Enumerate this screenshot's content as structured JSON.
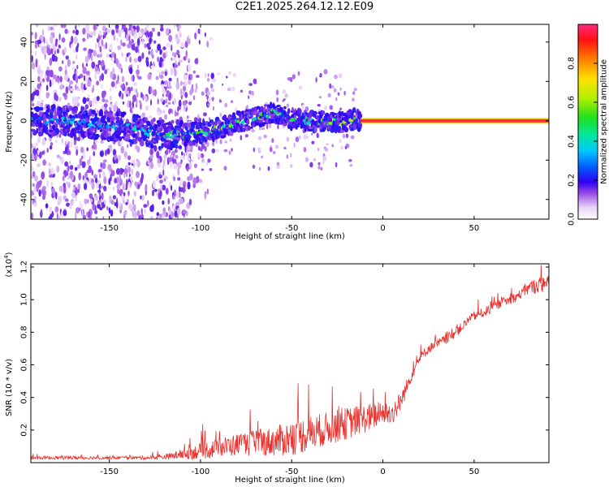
{
  "title": "C2E1.2025.264.12.12.E09",
  "chart_data": [
    {
      "type": "heatmap",
      "name": "spectrogram",
      "xlabel": "Height of straight line (km)",
      "ylabel": "Frequency (Hz)",
      "xlim": [
        -193,
        91
      ],
      "ylim": [
        -50,
        49
      ],
      "xticks": [
        -150,
        -100,
        -50,
        0,
        50
      ],
      "xtick_labels": [
        "-150",
        "-100",
        "-50",
        "0",
        "50"
      ],
      "yticks": [
        -40,
        -20,
        0,
        20,
        40
      ],
      "ytick_labels": [
        "-40",
        "-20",
        "0",
        "20",
        "40"
      ],
      "ridge": {
        "x": [
          -193,
          -175,
          -160,
          -140,
          -125,
          -110,
          -100,
          -90,
          -80,
          -70,
          -60,
          -50,
          -40,
          -30,
          -20,
          -10,
          0,
          10,
          15,
          91
        ],
        "y": [
          0,
          0,
          -2,
          -3,
          -7,
          -7,
          -6,
          -4,
          -1,
          2,
          4,
          1,
          0,
          -1,
          0,
          1,
          0,
          0,
          0,
          0
        ],
        "amplitude": [
          0.35,
          0.4,
          0.4,
          0.45,
          0.5,
          0.55,
          0.55,
          0.6,
          0.6,
          0.6,
          0.65,
          0.6,
          0.6,
          0.6,
          0.65,
          0.9,
          0.95,
          0.95,
          0.95,
          1.0
        ]
      },
      "colorbar": {
        "label": "Normalized spectral amplitude",
        "range": [
          0,
          1
        ],
        "ticks": [
          0.0,
          0.2,
          0.4,
          0.6,
          0.8
        ],
        "tick_labels": [
          "0.0",
          "0.2",
          "0.4",
          "0.6",
          "0.8"
        ]
      }
    },
    {
      "type": "line",
      "name": "snr",
      "xlabel": "Height of straight line (km)",
      "ylabel": "SNR (10 * v/v)",
      "scale_label": "(x10",
      "scale_exponent": "4",
      "xlim": [
        -193,
        91
      ],
      "ylim": [
        0,
        1.22
      ],
      "xticks": [
        -150,
        -100,
        -50,
        0,
        50
      ],
      "xtick_labels": [
        "-150",
        "-100",
        "-50",
        "0",
        "50"
      ],
      "yticks": [
        0.2,
        0.4,
        0.6,
        0.8,
        1.0,
        1.2
      ],
      "ytick_labels": [
        "0.2",
        "0.4",
        "0.6",
        "0.8",
        "1.0",
        "1.2"
      ],
      "color": "#e8302c",
      "series": [
        {
          "name": "SNR",
          "x": [
            -193,
            -180,
            -170,
            -160,
            -150,
            -140,
            -130,
            -120,
            -110,
            -100,
            -90,
            -80,
            -70,
            -60,
            -50,
            -40,
            -30,
            -20,
            -10,
            0,
            5,
            10,
            15,
            20,
            25,
            30,
            35,
            40,
            45,
            50,
            55,
            60,
            65,
            70,
            75,
            80,
            85,
            91
          ],
          "y": [
            0.03,
            0.03,
            0.03,
            0.03,
            0.03,
            0.03,
            0.03,
            0.035,
            0.05,
            0.07,
            0.09,
            0.11,
            0.12,
            0.13,
            0.15,
            0.18,
            0.21,
            0.24,
            0.27,
            0.3,
            0.3,
            0.38,
            0.52,
            0.64,
            0.7,
            0.73,
            0.76,
            0.8,
            0.85,
            0.9,
            0.92,
            0.95,
            0.98,
            1.0,
            1.03,
            1.07,
            1.09,
            1.1
          ],
          "noise": [
            0.01,
            0.01,
            0.012,
            0.01,
            0.01,
            0.01,
            0.012,
            0.015,
            0.03,
            0.05,
            0.06,
            0.07,
            0.08,
            0.09,
            0.11,
            0.11,
            0.1,
            0.1,
            0.09,
            0.08,
            0.07,
            0.06,
            0.04,
            0.03,
            0.03,
            0.03,
            0.03,
            0.03,
            0.03,
            0.03,
            0.03,
            0.03,
            0.03,
            0.03,
            0.03,
            0.04,
            0.05,
            0.05
          ]
        }
      ]
    }
  ]
}
